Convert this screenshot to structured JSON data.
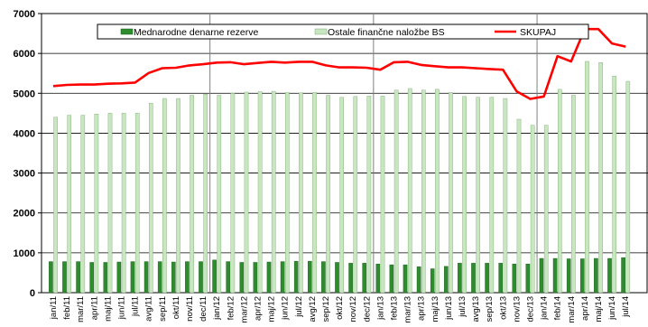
{
  "chart_data": {
    "type": "bar+line",
    "title": "",
    "xlabel": "",
    "ylabel": "",
    "ylim": [
      0,
      7000
    ],
    "yticks": [
      0,
      1000,
      2000,
      3000,
      4000,
      5000,
      6000,
      7000
    ],
    "grid": "horizontal major gridlines",
    "legend_position": "top",
    "categories": [
      "jan/11",
      "feb/11",
      "mar/11",
      "apr/11",
      "maj/11",
      "jun/11",
      "jul/11",
      "avg/11",
      "sep/11",
      "okt/11",
      "nov/11",
      "dec/11",
      "jan/12",
      "feb/12",
      "mar/12",
      "apr/12",
      "maj/12",
      "jun/12",
      "jul/12",
      "avg/12",
      "sep/12",
      "okt/12",
      "nov/12",
      "dec/12",
      "jan/13",
      "feb/13",
      "mar/13",
      "apr/13",
      "maj/13",
      "jun/13",
      "jul/13",
      "avg/13",
      "sep/13",
      "okt/13",
      "nov/13",
      "dec/13",
      "jan/14",
      "feb/14",
      "mar/14",
      "apr/14",
      "maj/14",
      "jun/14",
      "jul/14"
    ],
    "tick_labels": [
      "jan/11",
      "feb/11",
      "mar/11",
      "apr/11",
      "maj/11",
      "jun/11",
      "jul/11",
      "avg/11",
      "sep/11",
      "okt/11",
      "nov/11",
      "dec/11",
      "jan/12",
      "feb/12",
      "mar/12",
      "apr/12",
      "maj/12",
      "jun/12",
      "jul/12",
      "avg/12",
      "sep/12",
      "okt/12",
      "nov/12",
      "dec/12",
      "jan/13",
      "feb/13",
      "mar/13",
      "apr/13",
      "maj/13",
      "jun/13",
      "jul/13",
      "avg/13",
      "sep/13",
      "okt/13",
      "nov/13",
      "dec/13",
      "jan/14",
      "feb/14",
      "mar/14",
      "apr/14",
      "maj/14",
      "jun/14",
      "jul/14"
    ],
    "series": [
      {
        "name": "Mednarodne denarne rezerve",
        "type": "bar",
        "color": "#2e8b2e",
        "values": [
          780,
          780,
          780,
          760,
          760,
          770,
          780,
          780,
          780,
          770,
          780,
          780,
          820,
          780,
          760,
          760,
          770,
          780,
          790,
          790,
          780,
          760,
          740,
          740,
          720,
          700,
          700,
          650,
          600,
          660,
          740,
          740,
          740,
          740,
          720,
          720,
          860,
          860,
          850,
          850,
          860,
          860,
          880
        ]
      },
      {
        "name": "Ostale finančne naložbe BS",
        "type": "bar",
        "color": "#c8e6c0",
        "values": [
          4400,
          4450,
          4450,
          4480,
          4500,
          4500,
          4500,
          4750,
          4870,
          4870,
          4950,
          4980,
          4950,
          5000,
          5030,
          5040,
          5050,
          5020,
          5010,
          5020,
          4950,
          4900,
          4920,
          4930,
          4930,
          5080,
          5120,
          5080,
          5100,
          5020,
          4920,
          4900,
          4900,
          4870,
          4350,
          4200,
          4200,
          5100,
          4950,
          5800,
          5770,
          5430,
          5300
        ]
      },
      {
        "name": "SKUPAJ",
        "type": "line",
        "color": "#ff0000",
        "values": [
          5180,
          5210,
          5220,
          5220,
          5240,
          5250,
          5270,
          5510,
          5630,
          5640,
          5700,
          5730,
          5770,
          5780,
          5730,
          5760,
          5790,
          5770,
          5790,
          5790,
          5700,
          5650,
          5650,
          5640,
          5590,
          5780,
          5790,
          5710,
          5680,
          5650,
          5650,
          5630,
          5610,
          5590,
          5050,
          4860,
          4920,
          5930,
          5800,
          6610,
          6610,
          6250,
          6170
        ]
      }
    ]
  }
}
